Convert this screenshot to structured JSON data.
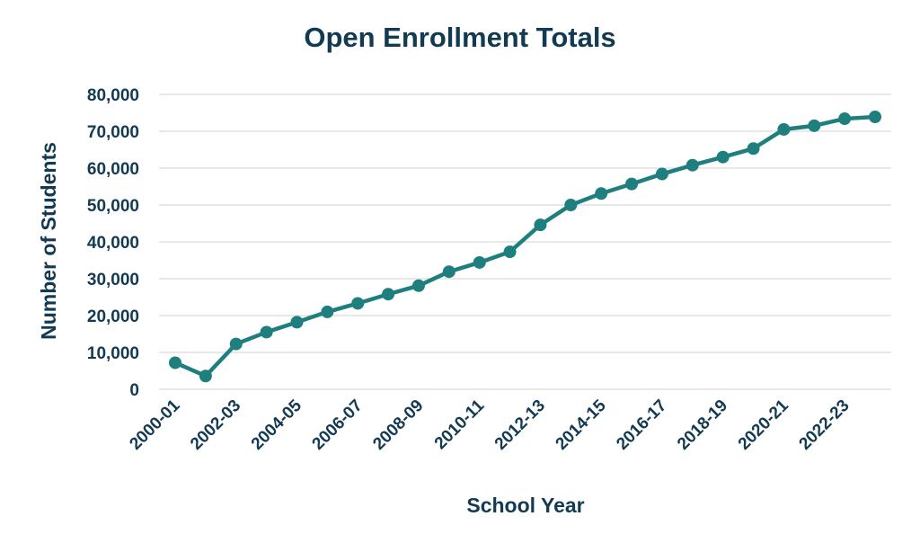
{
  "chart_data": {
    "type": "line",
    "title": "Open Enrollment Totals",
    "xlabel": "School Year",
    "ylabel": "Number of Students",
    "ylim": [
      0,
      80000
    ],
    "yticks": [
      "0",
      "10,000",
      "20,000",
      "30,000",
      "40,000",
      "50,000",
      "60,000",
      "70,000",
      "80,000"
    ],
    "grid": true,
    "legend": "none",
    "line_color": "#1f7f7f",
    "categories": [
      "2000-01",
      "2001-02",
      "2002-03",
      "2003-04",
      "2004-05",
      "2005-06",
      "2006-07",
      "2007-08",
      "2008-09",
      "2009-10",
      "2010-11",
      "2011-12",
      "2012-13",
      "2013-14",
      "2014-15",
      "2015-16",
      "2016-17",
      "2017-18",
      "2018-19",
      "2019-20",
      "2020-21",
      "2021-22",
      "2022-23",
      "2023-24"
    ],
    "xtick_labels": [
      "2000-01",
      "2002-03",
      "2004-05",
      "2006-07",
      "2008-09",
      "2010-11",
      "2012-13",
      "2014-15",
      "2016-17",
      "2018-19",
      "2020-21",
      "2022-23"
    ],
    "values": [
      7200,
      3600,
      12300,
      15500,
      18200,
      21000,
      23300,
      25800,
      28100,
      31900,
      34400,
      37300,
      44600,
      50000,
      53100,
      55700,
      58400,
      60800,
      63000,
      65300,
      70500,
      71500,
      73400,
      73900
    ]
  }
}
